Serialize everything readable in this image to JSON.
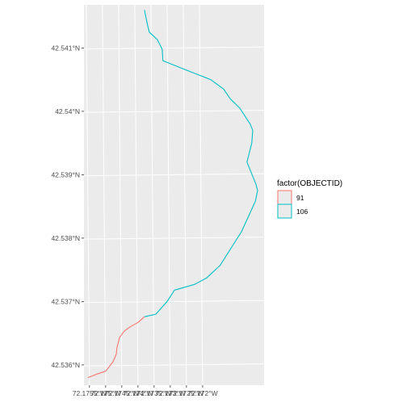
{
  "map": {
    "panel_background": "#ebebeb",
    "grid_color": "#ffffff",
    "y_ticks": [
      "42.541°N",
      "42.54°N",
      "42.539°N",
      "42.538°N",
      "42.537°N",
      "42.536°N"
    ],
    "x_ticks": [
      "72.1755°W",
      "72.175°W",
      "72.1745°W",
      "72.174°W",
      "72.1735°W",
      "72.173°W",
      "72.1725°W",
      "72.172°W"
    ],
    "legend": {
      "title": "factor(OBJECTID)",
      "entries": [
        {
          "label": "91",
          "color": "#f8766d"
        },
        {
          "label": "106",
          "color": "#00bfc4"
        }
      ]
    },
    "series": [
      {
        "name": "91",
        "color": "#f8766d",
        "points": [
          [
            -72.1755,
            42.5358
          ],
          [
            -72.17525,
            42.53585
          ],
          [
            -72.17495,
            42.5359
          ],
          [
            -72.17472,
            42.53605
          ],
          [
            -72.17462,
            42.53617
          ],
          [
            -72.1746,
            42.53627
          ],
          [
            -72.17452,
            42.53643
          ],
          [
            -72.17438,
            42.53653
          ],
          [
            -72.1742,
            42.5366
          ],
          [
            -72.17395,
            42.53667
          ],
          [
            -72.17375,
            42.53676
          ]
        ]
      },
      {
        "name": "106",
        "color": "#00bfc4",
        "points": [
          [
            -72.17375,
            42.53676
          ],
          [
            -72.1734,
            42.5368
          ],
          [
            -72.17305,
            42.537
          ],
          [
            -72.17282,
            42.53718
          ],
          [
            -72.1722,
            42.53727
          ],
          [
            -72.17183,
            42.53737
          ],
          [
            -72.17141,
            42.53757
          ],
          [
            -72.17075,
            42.5381
          ],
          [
            -72.17032,
            42.53858
          ],
          [
            -72.17025,
            42.53875
          ],
          [
            -72.1703,
            42.53885
          ],
          [
            -72.17058,
            42.5392
          ],
          [
            -72.17043,
            42.5395
          ],
          [
            -72.1704,
            42.5397
          ],
          [
            -72.17048,
            42.5398
          ],
          [
            -72.1708,
            42.54005
          ],
          [
            -72.1711,
            42.5402
          ],
          [
            -72.1713,
            42.54035
          ],
          [
            -72.1717,
            42.5405
          ],
          [
            -72.1727,
            42.5407
          ],
          [
            -72.17318,
            42.5408
          ],
          [
            -72.1732,
            42.54098
          ],
          [
            -72.17335,
            42.54113
          ],
          [
            -72.1736,
            42.54125
          ],
          [
            -72.17365,
            42.54135
          ],
          [
            -72.1737,
            42.54147
          ],
          [
            -72.17375,
            42.5416
          ]
        ]
      }
    ]
  }
}
